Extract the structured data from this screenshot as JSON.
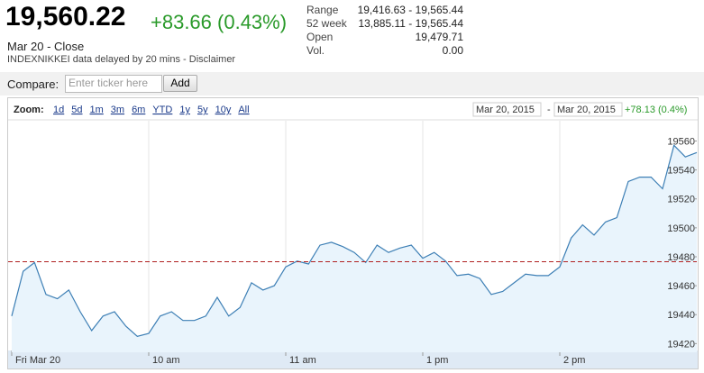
{
  "header": {
    "price": "19,560.22",
    "change": "+83.66 (0.43%)",
    "date": "Mar 20 - Close",
    "source": "INDEXNIKKEI data delayed by 20 mins - Disclaimer"
  },
  "stats": [
    {
      "label": "Range",
      "value": "19,416.63 - 19,565.44"
    },
    {
      "label": "52 week",
      "value": "13,885.11 - 19,565.44"
    },
    {
      "label": "Open",
      "value": "19,479.71"
    },
    {
      "label": "Vol.",
      "value": "0.00"
    }
  ],
  "compare": {
    "label": "Compare:",
    "placeholder": "Enter ticker here",
    "button": "Add"
  },
  "zoom": {
    "label": "Zoom:",
    "options": [
      "1d",
      "5d",
      "1m",
      "3m",
      "6m",
      "YTD",
      "1y",
      "5y",
      "10y",
      "All"
    ]
  },
  "date_range": {
    "from": "Mar 20, 2015",
    "separator": "-",
    "to": "Mar 20, 2015",
    "change": "+78.13 (0.4%)"
  },
  "chart_data": {
    "type": "line",
    "categories": [
      "Fri Mar 20",
      null,
      null,
      null,
      null,
      null,
      null,
      null,
      null,
      null,
      null,
      null,
      "10 am",
      null,
      null,
      null,
      null,
      null,
      null,
      null,
      null,
      null,
      null,
      null,
      "11 am",
      null,
      null,
      null,
      null,
      null,
      null,
      null,
      null,
      null,
      null,
      null,
      "1 pm",
      null,
      null,
      null,
      null,
      null,
      null,
      null,
      null,
      null,
      null,
      null,
      "2 pm",
      null,
      null,
      null,
      null,
      null,
      null,
      null,
      null,
      null,
      null,
      null,
      null
    ],
    "values": [
      19439,
      19470,
      19476,
      19454,
      19451,
      19457,
      19442,
      19429,
      19439,
      19442,
      19432,
      19425,
      19427,
      19439,
      19442,
      19436,
      19436,
      19439,
      19452,
      19439,
      19445,
      19462,
      19457,
      19460,
      19473,
      19477,
      19475,
      19488,
      19490,
      19487,
      19483,
      19476,
      19488,
      19483,
      19486,
      19488,
      19479,
      19483,
      19477,
      19467,
      19468,
      19465,
      19454,
      19456,
      19462,
      19468,
      19467,
      19467,
      19473,
      19493,
      19502,
      19495,
      19504,
      19507,
      19532,
      19535,
      19535,
      19527,
      19557,
      19549,
      19552
    ],
    "color": "#3d7fb5",
    "fill_color": "#e9f4fc",
    "previous_close": 19476.56,
    "previous_close_color": "#b02020",
    "ylim": [
      19414,
      19574
    ],
    "yticks": [
      19420,
      19440,
      19460,
      19480,
      19500,
      19520,
      19540,
      19560
    ]
  }
}
